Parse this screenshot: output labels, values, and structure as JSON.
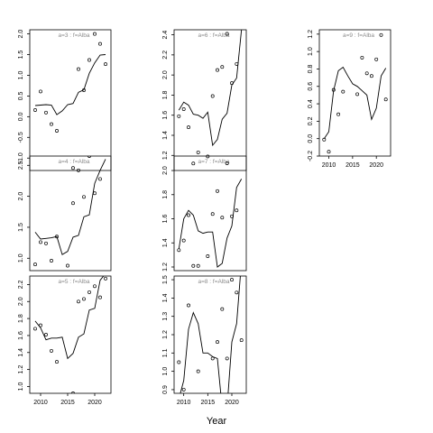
{
  "figure": {
    "xlabel": "Year"
  },
  "chart_data": [
    {
      "type": "line",
      "title": "a=3  :  f=Alba",
      "xlim": [
        2008,
        2023
      ],
      "ylim": [
        -1.3,
        2.1
      ],
      "y_ticks": [
        -1.0,
        -0.5,
        0.0,
        0.5,
        1.0,
        1.5,
        2.0
      ],
      "y_tick_labels": [
        "-1.0",
        "-0.5",
        "0.0",
        "0.5",
        "1.0",
        "1.5",
        "2.0"
      ],
      "x_ticks": [],
      "x_tick_labels": [],
      "series": [
        {
          "values": [
            [
              2009,
              0.27
            ],
            [
              2010,
              0.28
            ],
            [
              2011,
              0.29
            ],
            [
              2012,
              0.28
            ],
            [
              2013,
              0.05
            ],
            [
              2014,
              0.14
            ],
            [
              2015,
              0.29
            ],
            [
              2016,
              0.32
            ],
            [
              2017,
              0.59
            ],
            [
              2018,
              0.65
            ],
            [
              2019,
              1.05
            ],
            [
              2020,
              1.3
            ],
            [
              2021,
              1.49
            ],
            [
              2022,
              1.5
            ]
          ]
        }
      ],
      "points": [
        [
          2009,
          0.16
        ],
        [
          2010,
          0.61
        ],
        [
          2011,
          0.1
        ],
        [
          2012,
          -0.18
        ],
        [
          2013,
          -0.34
        ],
        [
          2016,
          -1.24
        ],
        [
          2017,
          1.15
        ],
        [
          2018,
          0.64
        ],
        [
          2019,
          1.37
        ],
        [
          2020,
          2.0
        ],
        [
          2021,
          1.76
        ],
        [
          2022,
          1.27
        ]
      ]
    },
    {
      "type": "line",
      "title": "a=6  :  f=Alba",
      "xlim": [
        2008,
        2023
      ],
      "ylim": [
        1.05,
        2.45
      ],
      "y_ticks": [
        1.2,
        1.4,
        1.6,
        1.8,
        2.0,
        2.2,
        2.4
      ],
      "y_tick_labels": [
        "1.2",
        "1.4",
        "1.6",
        "1.8",
        "2.0",
        "2.2",
        "2.4"
      ],
      "x_ticks": [],
      "x_tick_labels": [],
      "series": [
        {
          "values": [
            [
              2009,
              1.65
            ],
            [
              2010,
              1.73
            ],
            [
              2011,
              1.7
            ],
            [
              2012,
              1.61
            ],
            [
              2013,
              1.6
            ],
            [
              2014,
              1.57
            ],
            [
              2015,
              1.63
            ],
            [
              2016,
              1.3
            ],
            [
              2017,
              1.36
            ],
            [
              2018,
              1.56
            ],
            [
              2019,
              1.62
            ],
            [
              2020,
              1.9
            ],
            [
              2021,
              1.97
            ],
            [
              2022,
              2.45
            ]
          ]
        }
      ],
      "points": [
        [
          2009,
          1.59
        ],
        [
          2010,
          1.66
        ],
        [
          2011,
          1.48
        ],
        [
          2012,
          1.12
        ],
        [
          2013,
          1.23
        ],
        [
          2015,
          1.19
        ],
        [
          2016,
          1.79
        ],
        [
          2017,
          2.05
        ],
        [
          2018,
          2.08
        ],
        [
          2019,
          2.41
        ],
        [
          2020,
          1.92
        ],
        [
          2021,
          2.11
        ]
      ]
    },
    {
      "type": "line",
      "title": "a=9  :  f=Alba",
      "xlim": [
        2008,
        2023
      ],
      "ylim": [
        -0.2,
        1.25
      ],
      "y_ticks": [
        -0.2,
        0.0,
        0.2,
        0.4,
        0.6,
        0.8,
        1.0,
        1.2
      ],
      "y_tick_labels": [
        "-0.2",
        "0.0",
        "0.2",
        "0.4",
        "0.6",
        "0.8",
        "1.0",
        "1.2"
      ],
      "x_ticks": [
        2010,
        2015,
        2020
      ],
      "x_tick_labels": [
        "2010",
        "2015",
        "2020"
      ],
      "series": [
        {
          "values": [
            [
              2009,
              0.0
            ],
            [
              2010,
              0.08
            ],
            [
              2011,
              0.55
            ],
            [
              2012,
              0.78
            ],
            [
              2013,
              0.82
            ],
            [
              2014,
              0.72
            ],
            [
              2015,
              0.63
            ],
            [
              2016,
              0.6
            ],
            [
              2017,
              0.55
            ],
            [
              2018,
              0.5
            ],
            [
              2019,
              0.22
            ],
            [
              2020,
              0.35
            ],
            [
              2021,
              0.72
            ],
            [
              2022,
              0.81
            ]
          ]
        }
      ],
      "points": [
        [
          2009,
          -0.01
        ],
        [
          2010,
          -0.15
        ],
        [
          2011,
          0.56
        ],
        [
          2012,
          0.28
        ],
        [
          2013,
          0.54
        ],
        [
          2016,
          0.51
        ],
        [
          2017,
          0.93
        ],
        [
          2018,
          0.75
        ],
        [
          2019,
          0.72
        ],
        [
          2020,
          0.91
        ],
        [
          2021,
          1.19
        ],
        [
          2022,
          0.45
        ]
      ]
    },
    {
      "type": "line",
      "title": "a=4  :  f=Alba",
      "xlim": [
        2008,
        2023
      ],
      "ylim": [
        0.8,
        2.65
      ],
      "y_ticks": [
        1.0,
        1.5,
        2.0,
        2.5
      ],
      "y_tick_labels": [
        "1.0",
        "1.5",
        "2.0",
        "2.5"
      ],
      "x_ticks": [],
      "x_tick_labels": [],
      "series": [
        {
          "values": [
            [
              2009,
              1.42
            ],
            [
              2010,
              1.31
            ],
            [
              2011,
              1.32
            ],
            [
              2012,
              1.33
            ],
            [
              2013,
              1.35
            ],
            [
              2014,
              1.06
            ],
            [
              2015,
              1.11
            ],
            [
              2016,
              1.34
            ],
            [
              2017,
              1.37
            ],
            [
              2018,
              1.67
            ],
            [
              2019,
              1.7
            ],
            [
              2020,
              2.21
            ],
            [
              2021,
              2.42
            ],
            [
              2022,
              2.6
            ]
          ]
        }
      ],
      "points": [
        [
          2009,
          0.9
        ],
        [
          2010,
          1.26
        ],
        [
          2011,
          1.24
        ],
        [
          2012,
          0.96
        ],
        [
          2013,
          1.35
        ],
        [
          2015,
          0.88
        ],
        [
          2016,
          1.89
        ],
        [
          2017,
          2.42
        ],
        [
          2018,
          1.99
        ],
        [
          2019,
          2.65
        ],
        [
          2020,
          2.05
        ],
        [
          2021,
          2.28
        ]
      ]
    },
    {
      "type": "line",
      "title": "a=7  :  f=Alba",
      "xlim": [
        2008,
        2023
      ],
      "ylim": [
        1.17,
        2.12
      ],
      "y_ticks": [
        1.2,
        1.4,
        1.6,
        1.8,
        2.0
      ],
      "y_tick_labels": [
        "1.2",
        "1.4",
        "1.6",
        "1.8",
        "2.0"
      ],
      "x_ticks": [],
      "x_tick_labels": [],
      "series": [
        {
          "values": [
            [
              2009,
              1.35
            ],
            [
              2010,
              1.6
            ],
            [
              2011,
              1.67
            ],
            [
              2012,
              1.63
            ],
            [
              2013,
              1.5
            ],
            [
              2014,
              1.48
            ],
            [
              2015,
              1.49
            ],
            [
              2016,
              1.49
            ],
            [
              2017,
              1.2
            ],
            [
              2018,
              1.23
            ],
            [
              2019,
              1.44
            ],
            [
              2020,
              1.54
            ],
            [
              2021,
              1.86
            ],
            [
              2022,
              1.93
            ]
          ]
        }
      ],
      "points": [
        [
          2009,
          1.34
        ],
        [
          2010,
          1.42
        ],
        [
          2011,
          1.63
        ],
        [
          2012,
          1.21
        ],
        [
          2013,
          1.21
        ],
        [
          2015,
          1.29
        ],
        [
          2016,
          1.64
        ],
        [
          2017,
          1.83
        ],
        [
          2018,
          1.61
        ],
        [
          2019,
          2.06
        ],
        [
          2020,
          1.62
        ],
        [
          2021,
          1.67
        ]
      ]
    },
    {
      "type": "line",
      "title": "a=5  :  f=Alba",
      "xlim": [
        2008,
        2023
      ],
      "ylim": [
        0.92,
        2.3
      ],
      "y_ticks": [
        1.0,
        1.2,
        1.4,
        1.6,
        1.8,
        2.0,
        2.2
      ],
      "y_tick_labels": [
        "1.0",
        "1.2",
        "1.4",
        "1.6",
        "1.8",
        "2.0",
        "2.2"
      ],
      "x_ticks": [
        2010,
        2015,
        2020
      ],
      "x_tick_labels": [
        "2010",
        "2015",
        "2020"
      ],
      "series": [
        {
          "values": [
            [
              2009,
              1.77
            ],
            [
              2010,
              1.69
            ],
            [
              2011,
              1.55
            ],
            [
              2012,
              1.57
            ],
            [
              2013,
              1.57
            ],
            [
              2014,
              1.58
            ],
            [
              2015,
              1.33
            ],
            [
              2016,
              1.39
            ],
            [
              2017,
              1.58
            ],
            [
              2018,
              1.62
            ],
            [
              2019,
              1.9
            ],
            [
              2020,
              1.92
            ],
            [
              2021,
              2.25
            ],
            [
              2022,
              2.33
            ]
          ]
        }
      ],
      "points": [
        [
          2009,
          1.68
        ],
        [
          2010,
          1.72
        ],
        [
          2011,
          1.61
        ],
        [
          2012,
          1.42
        ],
        [
          2013,
          1.29
        ],
        [
          2016,
          0.92
        ],
        [
          2017,
          2.0
        ],
        [
          2018,
          2.03
        ],
        [
          2019,
          2.11
        ],
        [
          2020,
          2.18
        ],
        [
          2021,
          2.05
        ],
        [
          2022,
          2.27
        ]
      ]
    },
    {
      "type": "line",
      "title": "a=8  :  f=Alba",
      "xlim": [
        2008,
        2023
      ],
      "ylim": [
        0.88,
        1.52
      ],
      "y_ticks": [
        0.9,
        1.0,
        1.1,
        1.2,
        1.3,
        1.4,
        1.5
      ],
      "y_tick_labels": [
        "0.9",
        "1.0",
        "1.1",
        "1.2",
        "1.3",
        "1.4",
        "1.5"
      ],
      "x_ticks": [
        2010,
        2015,
        2020
      ],
      "x_tick_labels": [
        "2010",
        "2015",
        "2020"
      ],
      "series": [
        {
          "values": [
            [
              2009,
              0.85
            ],
            [
              2010,
              0.95
            ],
            [
              2011,
              1.23
            ],
            [
              2012,
              1.32
            ],
            [
              2013,
              1.26
            ],
            [
              2014,
              1.1
            ],
            [
              2015,
              1.1
            ],
            [
              2016,
              1.08
            ],
            [
              2017,
              1.07
            ],
            [
              2018,
              0.8
            ],
            [
              2019,
              0.8
            ],
            [
              2020,
              1.16
            ],
            [
              2021,
              1.26
            ],
            [
              2022,
              1.6
            ]
          ]
        }
      ],
      "points": [
        [
          2009,
          1.05
        ],
        [
          2010,
          0.9
        ],
        [
          2011,
          1.36
        ],
        [
          2012,
          0.86
        ],
        [
          2013,
          1.0
        ],
        [
          2016,
          1.07
        ],
        [
          2017,
          1.16
        ],
        [
          2018,
          1.34
        ],
        [
          2019,
          1.07
        ],
        [
          2020,
          1.5
        ],
        [
          2021,
          1.43
        ],
        [
          2022,
          1.17
        ]
      ]
    }
  ]
}
